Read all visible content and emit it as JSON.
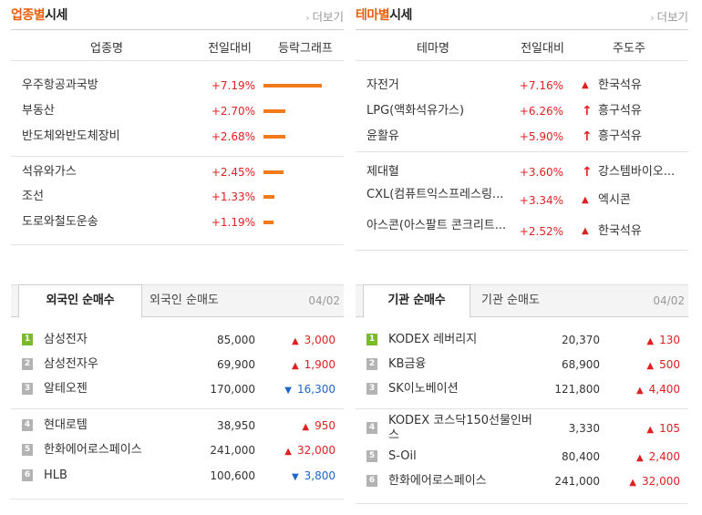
{
  "sector": {
    "title_accent": "업종별",
    "title_plain": "시세",
    "more_label": "더보기",
    "headers": [
      "업종명",
      "전일대비",
      "등락그래프"
    ],
    "rows": [
      {
        "name": "우주항공과국방",
        "rate": "+7.19%",
        "value": 7.19
      },
      {
        "name": "부동산",
        "rate": "+2.70%",
        "value": 2.7
      },
      {
        "name": "반도체와반도체장비",
        "rate": "+2.68%",
        "value": 2.68
      },
      {
        "name": "석유와가스",
        "rate": "+2.45%",
        "value": 2.45
      },
      {
        "name": "조선",
        "rate": "+1.33%",
        "value": 1.33
      },
      {
        "name": "도로와철도운송",
        "rate": "+1.19%",
        "value": 1.19
      }
    ]
  },
  "theme": {
    "title_accent": "테마별",
    "title_plain": "시세",
    "more_label": "더보기",
    "headers": [
      "테마명",
      "전일대비",
      "주도주"
    ],
    "rows": [
      {
        "name": "자전거",
        "rate": "+7.16%",
        "leader": "한국석유",
        "icon": "triangle-up"
      },
      {
        "name": "LPG(액화석유가스)",
        "rate": "+6.26%",
        "leader": "흥구석유",
        "icon": "arrow-up"
      },
      {
        "name": "윤활유",
        "rate": "+5.90%",
        "leader": "흥구석유",
        "icon": "arrow-up"
      },
      {
        "name": "제대혈",
        "rate": "+3.60%",
        "leader": "강스템바이오...",
        "icon": "arrow-up"
      },
      {
        "name": "CXL(컴퓨트익스프레스링...",
        "rate": "+3.34%",
        "leader": "엑시콘",
        "icon": "triangle-up"
      },
      {
        "name": "아스콘(아스팔트 콘크리트...",
        "rate": "+2.52%",
        "leader": "한국석유",
        "icon": "triangle-up"
      }
    ]
  },
  "foreign": {
    "tab_active": "외국인 순매수",
    "tab_inactive": "외국인 순매도",
    "date": "04/02",
    "rows": [
      {
        "rank": "1",
        "name": "삼성전자",
        "price": "85,000",
        "change": "3,000",
        "dir": "up"
      },
      {
        "rank": "2",
        "name": "삼성전자우",
        "price": "69,900",
        "change": "1,900",
        "dir": "up"
      },
      {
        "rank": "3",
        "name": "알테오젠",
        "price": "170,000",
        "change": "16,300",
        "dir": "down"
      },
      {
        "rank": "4",
        "name": "현대로템",
        "price": "38,950",
        "change": "950",
        "dir": "up"
      },
      {
        "rank": "5",
        "name": "한화에어로스페이스",
        "price": "241,000",
        "change": "32,000",
        "dir": "up"
      },
      {
        "rank": "6",
        "name": "HLB",
        "price": "100,600",
        "change": "3,800",
        "dir": "down"
      }
    ]
  },
  "institution": {
    "tab_active": "기관 순매수",
    "tab_inactive": "기관 순매도",
    "date": "04/02",
    "rows": [
      {
        "rank": "1",
        "name": "KODEX 레버리지",
        "price": "20,370",
        "change": "130",
        "dir": "up"
      },
      {
        "rank": "2",
        "name": "KB금융",
        "price": "68,900",
        "change": "500",
        "dir": "up"
      },
      {
        "rank": "3",
        "name": "SK이노베이션",
        "price": "121,800",
        "change": "4,400",
        "dir": "up"
      },
      {
        "rank": "4",
        "name": "KODEX 코스닥150선물인버스",
        "price": "3,330",
        "change": "105",
        "dir": "up"
      },
      {
        "rank": "5",
        "name": "S-Oil",
        "price": "80,400",
        "change": "2,400",
        "dir": "up"
      },
      {
        "rank": "6",
        "name": "한화에어로스페이스",
        "price": "241,000",
        "change": "32,000",
        "dir": "up"
      }
    ]
  },
  "colors": {
    "accent": "#e8600f",
    "up": "#e02020",
    "down": "#1d66c9",
    "bar": "#f17a1a",
    "rank_first": "#7aba2e"
  }
}
